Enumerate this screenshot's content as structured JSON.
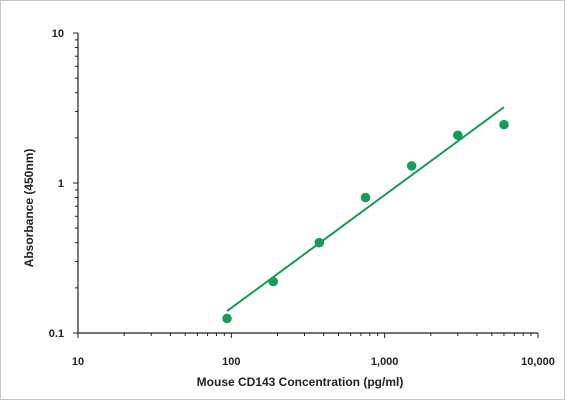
{
  "chart_data": {
    "type": "scatter",
    "xlabel": "Mouse CD143 Concentration (pg/ml)",
    "ylabel": "Absorbance (450nm)",
    "xscale": "log",
    "yscale": "log",
    "xlim": [
      10,
      10000
    ],
    "ylim": [
      0.1,
      10
    ],
    "xticks": [
      10,
      100,
      1000,
      10000
    ],
    "xtick_labels": [
      "10",
      "100",
      "1,000",
      "10,000"
    ],
    "yticks": [
      0.1,
      1,
      10
    ],
    "ytick_labels": [
      "0.1",
      "1",
      "10"
    ],
    "grid": false,
    "legend": "none",
    "series": [
      {
        "kind": "points",
        "color": "#1a9a5a",
        "x": [
          93.75,
          187.5,
          375,
          750,
          1500,
          3000,
          6000
        ],
        "y": [
          0.125,
          0.22,
          0.4,
          0.8,
          1.3,
          2.08,
          2.45
        ]
      },
      {
        "kind": "fit-line",
        "color": "#1a9a5a",
        "x": [
          93.75,
          6000
        ],
        "y": [
          0.14,
          3.2
        ]
      }
    ]
  }
}
